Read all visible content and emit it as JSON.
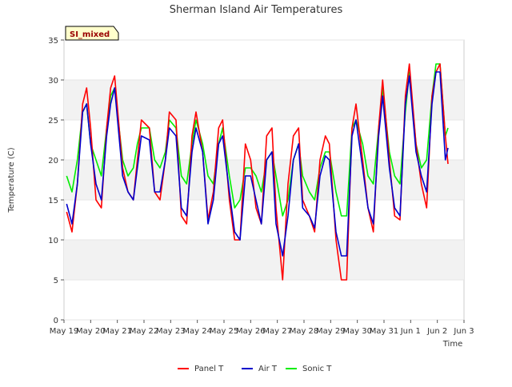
{
  "chart_data": {
    "type": "line",
    "title": "Sherman Island Air Temperatures",
    "xlabel": "Time",
    "ylabel": "Temperature (C)",
    "badge": "SI_mixed",
    "xlim": [
      "May 19",
      "Jun 3"
    ],
    "ylim": [
      0,
      35
    ],
    "x_ticks": [
      "May 19",
      "May 20",
      "May 21",
      "May 22",
      "May 23",
      "May 24",
      "May 25",
      "May 26",
      "May 27",
      "May 28",
      "May 29",
      "May 30",
      "May 31",
      "Jun 1",
      "Jun 2",
      "Jun 3"
    ],
    "y_ticks": [
      0,
      5,
      10,
      15,
      20,
      25,
      30,
      35
    ],
    "legend_position": "bottom-center",
    "grid": "alternating horizontal bands",
    "x_unit": "days after May 19 (fractional)",
    "series": [
      {
        "name": "Panel T",
        "color": "#ff0000",
        "x": [
          0.1,
          0.3,
          0.5,
          0.7,
          0.85,
          1.0,
          1.2,
          1.4,
          1.6,
          1.75,
          1.9,
          2.2,
          2.4,
          2.6,
          2.75,
          2.9,
          3.2,
          3.4,
          3.6,
          3.8,
          3.95,
          4.2,
          4.4,
          4.6,
          4.8,
          4.95,
          5.2,
          5.4,
          5.6,
          5.8,
          5.95,
          6.2,
          6.4,
          6.6,
          6.8,
          7.0,
          7.2,
          7.4,
          7.6,
          7.8,
          7.95,
          8.2,
          8.4,
          8.6,
          8.8,
          8.95,
          9.2,
          9.4,
          9.6,
          9.8,
          9.95,
          10.2,
          10.4,
          10.6,
          10.8,
          10.95,
          11.2,
          11.4,
          11.6,
          11.8,
          11.95,
          12.2,
          12.4,
          12.6,
          12.8,
          12.95,
          13.2,
          13.4,
          13.6,
          13.8,
          13.95,
          14.1,
          14.3,
          14.4
        ],
        "y": [
          13.5,
          11,
          17,
          27,
          29,
          24,
          15,
          14,
          24,
          29,
          30.5,
          19,
          16,
          15,
          20,
          25,
          24,
          16,
          15,
          20,
          26,
          25,
          13,
          12,
          23,
          26,
          21,
          12.5,
          16,
          24,
          25,
          15,
          10,
          10,
          22,
          20,
          14,
          12,
          23,
          24,
          14,
          5,
          17,
          23,
          24,
          15,
          13,
          11,
          20,
          23,
          22,
          10,
          5,
          5,
          24,
          27,
          20,
          14,
          11,
          24,
          30,
          20,
          13,
          12.5,
          28,
          32,
          22,
          17,
          14,
          28,
          31,
          32,
          23,
          19.5
        ]
      },
      {
        "name": "Air T",
        "color": "#0000cc",
        "x": [
          0.1,
          0.3,
          0.5,
          0.7,
          0.85,
          1.0,
          1.2,
          1.4,
          1.6,
          1.75,
          1.9,
          2.2,
          2.4,
          2.6,
          2.75,
          2.9,
          3.2,
          3.4,
          3.6,
          3.8,
          3.95,
          4.2,
          4.4,
          4.6,
          4.8,
          4.95,
          5.2,
          5.4,
          5.6,
          5.8,
          5.95,
          6.2,
          6.4,
          6.6,
          6.8,
          7.0,
          7.2,
          7.4,
          7.6,
          7.8,
          7.95,
          8.2,
          8.4,
          8.6,
          8.8,
          8.95,
          9.2,
          9.4,
          9.6,
          9.8,
          9.95,
          10.2,
          10.4,
          10.6,
          10.8,
          10.95,
          11.2,
          11.4,
          11.6,
          11.8,
          11.95,
          12.2,
          12.4,
          12.6,
          12.8,
          12.95,
          13.2,
          13.4,
          13.6,
          13.8,
          13.95,
          14.1,
          14.3,
          14.4
        ],
        "y": [
          14.5,
          12,
          17,
          26,
          27,
          22,
          17,
          15,
          23,
          27,
          29,
          18,
          16,
          15,
          19,
          23,
          22.5,
          16,
          16,
          20,
          24,
          23,
          14,
          13,
          21,
          24,
          21,
          12,
          15,
          22,
          23,
          16,
          11,
          10,
          18,
          18,
          15,
          12,
          20,
          21,
          12,
          8,
          13,
          20,
          22,
          14,
          13,
          11.5,
          18,
          20.5,
          20,
          11,
          8,
          8,
          23,
          25,
          19,
          14,
          12,
          23,
          28,
          19,
          14,
          13,
          27,
          30.5,
          21,
          18,
          16,
          27,
          31,
          31,
          20,
          21.5
        ]
      },
      {
        "name": "Sonic T",
        "color": "#00ee00",
        "x": [
          0.1,
          0.3,
          0.5,
          0.7,
          0.85,
          1.0,
          1.2,
          1.4,
          1.6,
          1.75,
          1.9,
          2.2,
          2.4,
          2.6,
          2.75,
          2.9,
          3.2,
          3.4,
          3.6,
          3.8,
          3.95,
          4.2,
          4.4,
          4.6,
          4.8,
          4.95,
          5.2,
          5.4,
          5.6,
          5.8,
          5.95,
          6.2,
          6.4,
          6.6,
          6.8,
          7.0,
          7.2,
          7.4,
          7.6,
          7.8,
          7.95,
          8.2,
          8.4,
          8.6,
          8.8,
          8.95,
          9.2,
          9.4,
          9.6,
          9.8,
          9.95,
          10.2,
          10.4,
          10.6,
          10.8,
          10.95,
          11.2,
          11.4,
          11.6,
          11.8,
          11.95,
          12.2,
          12.4,
          12.6,
          12.8,
          12.95,
          13.2,
          13.4,
          13.6,
          13.8,
          13.95,
          14.1,
          14.3,
          14.4
        ],
        "y": [
          18,
          16,
          20,
          26,
          27,
          22,
          20,
          18,
          24,
          28,
          29,
          20,
          18,
          19,
          22,
          24,
          24,
          20,
          19,
          21,
          25,
          24,
          18,
          17,
          22,
          25,
          22,
          18,
          17,
          22,
          24,
          18,
          14,
          15,
          19,
          19,
          18,
          16,
          20,
          21,
          18,
          13,
          15,
          20,
          22,
          18,
          16,
          15,
          19,
          21,
          21,
          16,
          13,
          13,
          24,
          25,
          22,
          18,
          17,
          24,
          29,
          21,
          18,
          17,
          26,
          31,
          22,
          19,
          20,
          28,
          32,
          32,
          23,
          24
        ]
      }
    ]
  }
}
